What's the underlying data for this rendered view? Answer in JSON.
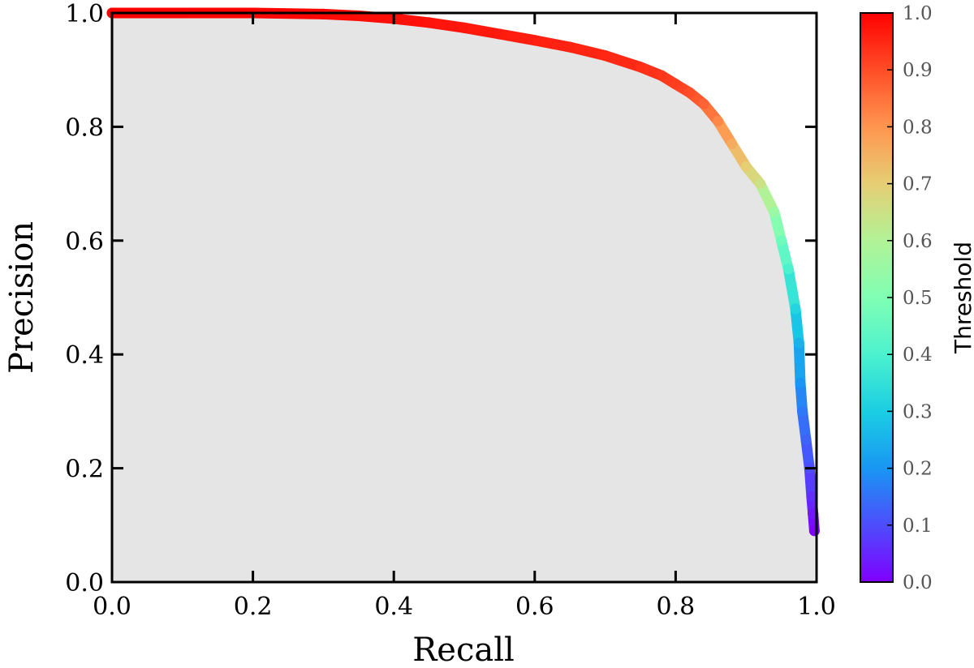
{
  "chart_data": {
    "type": "line",
    "xlabel": "Recall",
    "ylabel": "Precision",
    "xlim": [
      0.0,
      1.0
    ],
    "ylim": [
      0.0,
      1.0
    ],
    "x_ticks": [
      "0.0",
      "0.2",
      "0.4",
      "0.6",
      "0.8",
      "1.0"
    ],
    "y_ticks": [
      "0.0",
      "0.2",
      "0.4",
      "0.6",
      "0.8",
      "1.0"
    ],
    "fill_under_curve": true,
    "fill_color": "#e5e5e5",
    "grid": false,
    "colormap": "rainbow",
    "colorbar": {
      "label": "Threshold",
      "range": [
        0.0,
        1.0
      ],
      "ticks": [
        "0.0",
        "0.1",
        "0.2",
        "0.3",
        "0.4",
        "0.5",
        "0.6",
        "0.7",
        "0.8",
        "0.9",
        "1.0"
      ]
    },
    "series": [
      {
        "points": [
          {
            "recall": 0.0,
            "precision": 1.0,
            "threshold": 1.0
          },
          {
            "recall": 0.1,
            "precision": 1.0,
            "threshold": 1.0
          },
          {
            "recall": 0.2,
            "precision": 1.0,
            "threshold": 0.995
          },
          {
            "recall": 0.3,
            "precision": 0.998,
            "threshold": 0.99
          },
          {
            "recall": 0.35,
            "precision": 0.995,
            "threshold": 0.985
          },
          {
            "recall": 0.4,
            "precision": 0.99,
            "threshold": 0.98
          },
          {
            "recall": 0.45,
            "precision": 0.983,
            "threshold": 0.975
          },
          {
            "recall": 0.5,
            "precision": 0.974,
            "threshold": 0.97
          },
          {
            "recall": 0.55,
            "precision": 0.963,
            "threshold": 0.965
          },
          {
            "recall": 0.6,
            "precision": 0.952,
            "threshold": 0.96
          },
          {
            "recall": 0.65,
            "precision": 0.94,
            "threshold": 0.955
          },
          {
            "recall": 0.7,
            "precision": 0.925,
            "threshold": 0.95
          },
          {
            "recall": 0.75,
            "precision": 0.905,
            "threshold": 0.94
          },
          {
            "recall": 0.78,
            "precision": 0.89,
            "threshold": 0.93
          },
          {
            "recall": 0.8,
            "precision": 0.875,
            "threshold": 0.92
          },
          {
            "recall": 0.82,
            "precision": 0.86,
            "threshold": 0.9
          },
          {
            "recall": 0.84,
            "precision": 0.84,
            "threshold": 0.87
          },
          {
            "recall": 0.86,
            "precision": 0.81,
            "threshold": 0.82
          },
          {
            "recall": 0.88,
            "precision": 0.77,
            "threshold": 0.76
          },
          {
            "recall": 0.9,
            "precision": 0.73,
            "threshold": 0.7
          },
          {
            "recall": 0.92,
            "precision": 0.7,
            "threshold": 0.65
          },
          {
            "recall": 0.94,
            "precision": 0.65,
            "threshold": 0.55
          },
          {
            "recall": 0.95,
            "precision": 0.6,
            "threshold": 0.47
          },
          {
            "recall": 0.96,
            "precision": 0.55,
            "threshold": 0.4
          },
          {
            "recall": 0.97,
            "precision": 0.48,
            "threshold": 0.32
          },
          {
            "recall": 0.975,
            "precision": 0.42,
            "threshold": 0.25
          },
          {
            "recall": 0.977,
            "precision": 0.35,
            "threshold": 0.2
          },
          {
            "recall": 0.98,
            "precision": 0.3,
            "threshold": 0.16
          },
          {
            "recall": 0.985,
            "precision": 0.25,
            "threshold": 0.13
          },
          {
            "recall": 0.99,
            "precision": 0.2,
            "threshold": 0.1
          },
          {
            "recall": 0.993,
            "precision": 0.15,
            "threshold": 0.06
          },
          {
            "recall": 0.995,
            "precision": 0.12,
            "threshold": 0.03
          },
          {
            "recall": 0.997,
            "precision": 0.09,
            "threshold": 0.0
          }
        ]
      }
    ]
  }
}
